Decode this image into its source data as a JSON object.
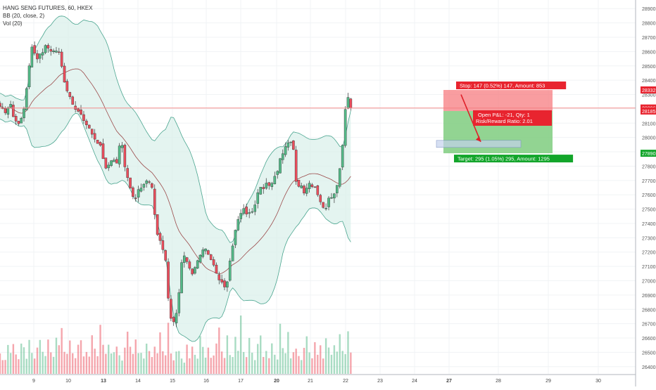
{
  "legend": {
    "symbol": "HANG SENG FUTURES, 60, HKEX",
    "bb": "BB (20, close, 2)",
    "vol": "Vol (20)"
  },
  "colors": {
    "up": "#53b987",
    "down": "#eb4d5c",
    "bb_fill": "#d9efe9",
    "bb_band": "#4aa58f",
    "bb_basis": "#9b4a4a",
    "stop_zone": "#f77c80",
    "target_zone": "#7fcc7f",
    "price_line": "#f48c8c"
  },
  "position": {
    "stop_label": "Stop: 147 (0.52%) 147, Amount: 853",
    "pnl_label": "Open P&L: -21, Qty: 1",
    "rr_label": "Risk/Reward Ratio: 2.01",
    "target_label": "Target: 295 (1.05%) 295, Amount: 1295",
    "stop_price": 28332,
    "entry_price": 28185,
    "target_price": 27890,
    "current_price": 28206
  },
  "chart_data": {
    "type": "candlestick",
    "title": "HANG SENG FUTURES, 60, HKEX",
    "ylim": [
      26350,
      28960
    ],
    "y_ticks": [
      28900,
      28800,
      28700,
      28600,
      28500,
      28400,
      28300,
      28200,
      28100,
      28000,
      27900,
      27800,
      27700,
      27600,
      27500,
      27400,
      27300,
      27200,
      27100,
      27000,
      26900,
      26800,
      26700,
      26600,
      26500,
      26400
    ],
    "price_badges": [
      "28332",
      "28206",
      "28185",
      "27890"
    ],
    "x_ticks": [
      {
        "label": "9",
        "day": 9
      },
      {
        "label": "10",
        "day": 10
      },
      {
        "label": "13",
        "day": 13
      },
      {
        "label": "14",
        "day": 14
      },
      {
        "label": "15",
        "day": 15
      },
      {
        "label": "16",
        "day": 16
      },
      {
        "label": "17",
        "day": 17
      },
      {
        "label": "20",
        "day": 20
      },
      {
        "label": "21",
        "day": 21
      },
      {
        "label": "22",
        "day": 22
      },
      {
        "label": "23",
        "day": 23
      },
      {
        "label": "24",
        "day": 24
      },
      {
        "label": "27",
        "day": 27
      },
      {
        "label": "28",
        "day": 28
      },
      {
        "label": "29",
        "day": 29
      },
      {
        "label": "30",
        "day": 30
      }
    ],
    "close_path": [
      [
        8.0,
        28220
      ],
      [
        8.15,
        28180
      ],
      [
        8.3,
        28230
      ],
      [
        8.45,
        28100
      ],
      [
        8.6,
        28120
      ],
      [
        8.75,
        28250
      ],
      [
        8.85,
        28500
      ],
      [
        8.95,
        28620
      ],
      [
        9.1,
        28560
      ],
      [
        9.25,
        28600
      ],
      [
        9.4,
        28640
      ],
      [
        9.55,
        28590
      ],
      [
        9.7,
        28620
      ],
      [
        9.85,
        28430
      ],
      [
        10.0,
        28300
      ],
      [
        10.15,
        28230
      ],
      [
        10.3,
        28180
      ],
      [
        10.45,
        28120
      ],
      [
        10.6,
        28050
      ],
      [
        10.75,
        28000
      ],
      [
        10.9,
        27950
      ],
      [
        11.0,
        27820
      ],
      [
        11.1,
        27750
      ],
      [
        11.2,
        27860
      ],
      [
        11.3,
        27850
      ],
      [
        11.4,
        27820
      ],
      [
        11.5,
        28000
      ],
      [
        11.6,
        27820
      ],
      [
        11.7,
        27720
      ],
      [
        11.8,
        27600
      ],
      [
        11.9,
        27550
      ],
      [
        12.0,
        27620
      ],
      [
        12.1,
        27660
      ],
      [
        12.2,
        27700
      ],
      [
        12.3,
        27680
      ],
      [
        12.4,
        27650
      ],
      [
        12.5,
        27450
      ],
      [
        12.6,
        27280
      ],
      [
        12.7,
        27250
      ],
      [
        12.8,
        27160
      ],
      [
        12.9,
        26800
      ],
      [
        13.0,
        26700
      ],
      [
        13.1,
        26760
      ],
      [
        13.2,
        26950
      ],
      [
        13.3,
        27220
      ],
      [
        13.4,
        27160
      ],
      [
        13.5,
        27080
      ],
      [
        13.6,
        27030
      ],
      [
        13.7,
        27100
      ],
      [
        13.8,
        27180
      ],
      [
        13.9,
        27200
      ],
      [
        14.0,
        27250
      ],
      [
        14.1,
        27150
      ],
      [
        14.2,
        27130
      ],
      [
        14.3,
        27030
      ],
      [
        14.4,
        27000
      ],
      [
        14.5,
        26950
      ],
      [
        14.6,
        26970
      ],
      [
        14.7,
        27140
      ],
      [
        14.8,
        27300
      ],
      [
        14.9,
        27400
      ],
      [
        15.0,
        27450
      ],
      [
        15.1,
        27500
      ],
      [
        15.2,
        27470
      ],
      [
        15.3,
        27480
      ],
      [
        15.4,
        27520
      ],
      [
        15.5,
        27650
      ],
      [
        15.6,
        27640
      ],
      [
        15.7,
        27660
      ],
      [
        15.8,
        27680
      ],
      [
        15.9,
        27700
      ],
      [
        16.0,
        27760
      ],
      [
        16.1,
        27850
      ],
      [
        16.2,
        27900
      ],
      [
        16.3,
        27950
      ],
      [
        16.4,
        27960
      ],
      [
        16.5,
        27920
      ],
      [
        16.6,
        27640
      ],
      [
        16.7,
        27680
      ],
      [
        16.8,
        27620
      ],
      [
        16.9,
        27660
      ],
      [
        17.0,
        27690
      ],
      [
        17.1,
        27660
      ],
      [
        17.2,
        27600
      ],
      [
        17.3,
        27560
      ],
      [
        17.4,
        27500
      ],
      [
        17.5,
        27560
      ],
      [
        17.6,
        27600
      ],
      [
        17.7,
        27620
      ],
      [
        17.8,
        27720
      ],
      [
        17.9,
        27900
      ],
      [
        18.0,
        28200
      ],
      [
        18.08,
        28270
      ],
      [
        18.15,
        28206
      ]
    ],
    "volume_profile": [
      0.35,
      0.2,
      0.15,
      0.45,
      0.25,
      0.55,
      0.3,
      0.2,
      0.6,
      0.35,
      0.18,
      0.5,
      0.28,
      0.22,
      0.4,
      0.7,
      0.3,
      0.2,
      0.55,
      0.35,
      0.25,
      0.6,
      0.45,
      1.0,
      0.35,
      0.25,
      0.5,
      0.3,
      0.2,
      0.45,
      0.6,
      0.3,
      0.4,
      0.25,
      0.55,
      0.35,
      0.2,
      0.9,
      0.4,
      0.3,
      0.6,
      0.25,
      0.35,
      0.5,
      0.3,
      0.2,
      0.45,
      0.8,
      0.35,
      0.25,
      0.55,
      0.3,
      0.4,
      0.2,
      0.6,
      0.35,
      0.25,
      0.5,
      0.3,
      0.7,
      0.4,
      0.25,
      0.85,
      0.3,
      0.2,
      0.45
    ]
  }
}
